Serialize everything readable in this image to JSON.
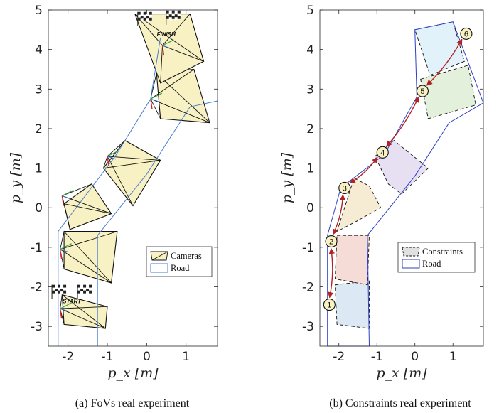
{
  "chart_data": [
    {
      "type": "line",
      "caption": "(a) FoVs real experiment",
      "xlabel": "p_x [m]",
      "ylabel": "p_y [m]",
      "xlim": [
        -2.5,
        1.8
      ],
      "ylim": [
        -3.5,
        5.0
      ],
      "xticks": [
        "-2",
        "-1",
        "0",
        "1"
      ],
      "yticks": [
        "-3",
        "-2",
        "-1",
        "0",
        "1",
        "2",
        "3",
        "4",
        "5"
      ],
      "legend": {
        "position": "lower-right",
        "entries": [
          "Cameras",
          "Road"
        ]
      },
      "markers": {
        "start": "START",
        "finish": "FINISH"
      },
      "road": {
        "left": [
          [
            -2.25,
            -3.5
          ],
          [
            -2.25,
            -0.6
          ],
          [
            -0.8,
            1.3
          ],
          [
            0.1,
            2.75
          ],
          [
            0.35,
            4.3
          ]
        ],
        "right": [
          [
            -1.25,
            -3.5
          ],
          [
            -1.25,
            -0.7
          ],
          [
            0.0,
            0.85
          ],
          [
            1.1,
            2.55
          ],
          [
            1.8,
            2.7
          ]
        ]
      },
      "cameras": [
        {
          "apex": [
            -2.2,
            -2.55
          ],
          "quad": [
            [
              -2.15,
              -2.2
            ],
            [
              -1.0,
              -2.5
            ],
            [
              -1.05,
              -3.05
            ],
            [
              -2.1,
              -2.95
            ]
          ]
        },
        {
          "apex": [
            -2.2,
            -1.05
          ],
          "quad": [
            [
              -2.1,
              -0.6
            ],
            [
              -0.75,
              -0.6
            ],
            [
              -0.9,
              -1.9
            ],
            [
              -2.1,
              -1.55
            ]
          ]
        },
        {
          "apex": [
            -2.15,
            0.3
          ],
          "quad": [
            [
              -2.1,
              0.1
            ],
            [
              -1.4,
              0.6
            ],
            [
              -0.9,
              -0.15
            ],
            [
              -1.95,
              -0.55
            ]
          ]
        },
        {
          "apex": [
            -1.0,
            1.3
          ],
          "quad": [
            [
              -1.1,
              1.0
            ],
            [
              -0.55,
              1.7
            ],
            [
              0.35,
              1.2
            ],
            [
              -0.35,
              0.05
            ]
          ]
        },
        {
          "apex": [
            0.1,
            2.75
          ],
          "quad": [
            [
              0.25,
              3.4
            ],
            [
              1.2,
              3.5
            ],
            [
              1.6,
              2.15
            ],
            [
              0.35,
              2.25
            ]
          ]
        },
        {
          "apex": [
            0.4,
            4.1
          ],
          "quad": [
            [
              -0.3,
              4.9
            ],
            [
              1.1,
              4.9
            ],
            [
              1.45,
              3.7
            ],
            [
              0.35,
              3.15
            ]
          ]
        }
      ]
    },
    {
      "type": "line",
      "caption": "(b) Constraints real experiment",
      "xlabel": "p_x [m]",
      "ylabel": "p_y [m]",
      "xlim": [
        -2.5,
        1.8
      ],
      "ylim": [
        -3.5,
        5.0
      ],
      "xticks": [
        "-2",
        "-1",
        "0",
        "1"
      ],
      "yticks": [
        "-3",
        "-2",
        "-1",
        "0",
        "1",
        "2",
        "3",
        "4",
        "5"
      ],
      "legend": {
        "position": "lower-right",
        "entries": [
          "Constraints",
          "Road"
        ]
      },
      "road_polygon": [
        [
          -2.3,
          -3.5
        ],
        [
          -2.3,
          -0.7
        ],
        [
          -1.95,
          0.5
        ],
        [
          -0.8,
          1.35
        ],
        [
          0.05,
          2.8
        ],
        [
          0.0,
          4.5
        ],
        [
          1.0,
          4.7
        ],
        [
          1.8,
          2.65
        ],
        [
          0.9,
          2.15
        ],
        [
          0.0,
          0.8
        ],
        [
          -1.25,
          -0.7
        ],
        [
          -1.2,
          -3.5
        ]
      ],
      "waypoints": [
        {
          "label": "1",
          "x": -2.25,
          "y": -2.45
        },
        {
          "label": "2",
          "x": -2.2,
          "y": -0.85
        },
        {
          "label": "3",
          "x": -1.85,
          "y": 0.5
        },
        {
          "label": "4",
          "x": -0.85,
          "y": 1.4
        },
        {
          "label": "5",
          "x": 0.2,
          "y": 2.95
        },
        {
          "label": "6",
          "x": 1.35,
          "y": 4.4
        }
      ],
      "constraints": [
        {
          "color": "#dce9f5",
          "poly": [
            [
              -2.1,
              -1.95
            ],
            [
              -1.2,
              -1.85
            ],
            [
              -1.2,
              -3.05
            ],
            [
              -2.05,
              -2.95
            ]
          ]
        },
        {
          "color": "#f5dcd6",
          "poly": [
            [
              -2.05,
              -0.7
            ],
            [
              -1.2,
              -0.7
            ],
            [
              -1.25,
              -1.95
            ],
            [
              -2.1,
              -1.8
            ]
          ]
        },
        {
          "color": "#f5ecd3",
          "poly": [
            [
              -1.6,
              0.75
            ],
            [
              -1.2,
              0.55
            ],
            [
              -0.9,
              0.0
            ],
            [
              -1.55,
              -0.35
            ],
            [
              -2.05,
              -0.6
            ]
          ]
        },
        {
          "color": "#e6e0f2",
          "poly": [
            [
              -1.05,
              1.3
            ],
            [
              -0.55,
              1.7
            ],
            [
              0.35,
              1.0
            ],
            [
              -0.35,
              0.35
            ],
            [
              -0.7,
              0.6
            ]
          ]
        },
        {
          "color": "#e3f0dc",
          "poly": [
            [
              0.15,
              3.25
            ],
            [
              1.4,
              3.6
            ],
            [
              1.6,
              2.6
            ],
            [
              0.35,
              2.25
            ]
          ]
        },
        {
          "color": "#e2f2fa",
          "poly": [
            [
              0.0,
              4.5
            ],
            [
              1.0,
              4.7
            ],
            [
              1.3,
              3.7
            ],
            [
              0.4,
              3.35
            ]
          ]
        }
      ]
    }
  ]
}
